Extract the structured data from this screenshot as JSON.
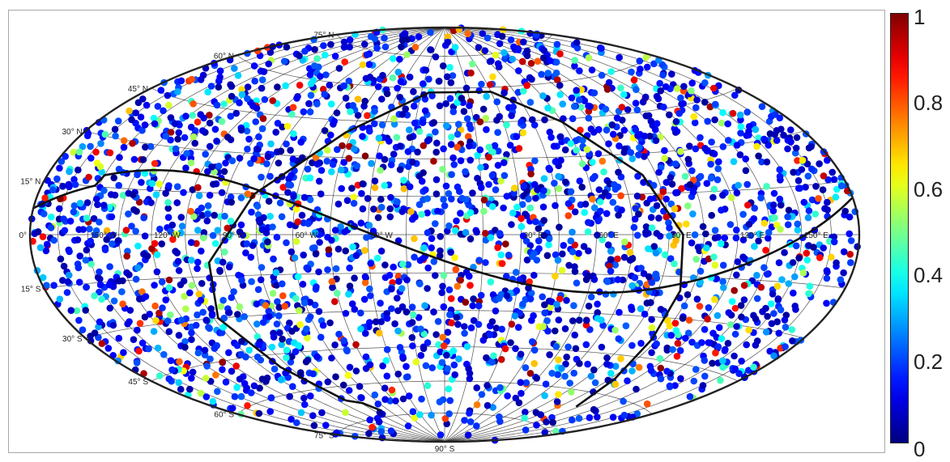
{
  "chart_data": {
    "type": "scatter",
    "projection": "hammer-aitoff",
    "title": "",
    "grid": true,
    "lat_labels": [
      "75° N",
      "60° N",
      "45° N",
      "30° N",
      "15° N",
      "0°",
      "15° S",
      "30° S",
      "45° S",
      "60° S",
      "75° S",
      "90° S"
    ],
    "lat_label_values": [
      75,
      60,
      45,
      30,
      15,
      0,
      -15,
      -30,
      -45,
      -60,
      -75,
      -90
    ],
    "lon_labels": [
      "150° W",
      "120° W",
      "90° W",
      "60° W",
      "30° W",
      "30° E",
      "60° E",
      "90° E",
      "120° E",
      "150° E"
    ],
    "lon_label_values": [
      -150,
      -120,
      -90,
      -60,
      -30,
      30,
      60,
      90,
      120,
      150
    ],
    "lat_grid_step": 15,
    "lon_grid_step": 15,
    "colormap": "jet",
    "clim": [
      0,
      1
    ],
    "colorbar_ticks": [
      "0",
      "0.2",
      "0.4",
      "0.6",
      "0.8",
      "1"
    ],
    "point_count_approx": 3000,
    "value_distribution": "mostly 0–0.2 (blue), fewer 0.3–0.6, scattered 0.8–1 clustered near the curved boundaries",
    "curves": [
      "supergalactic/galactic plane sinusoid",
      "exposure boundary loop"
    ],
    "colors": {
      "frame": "#a8a8a8",
      "grid": "#1a1a1a",
      "curve": "#111111"
    }
  }
}
